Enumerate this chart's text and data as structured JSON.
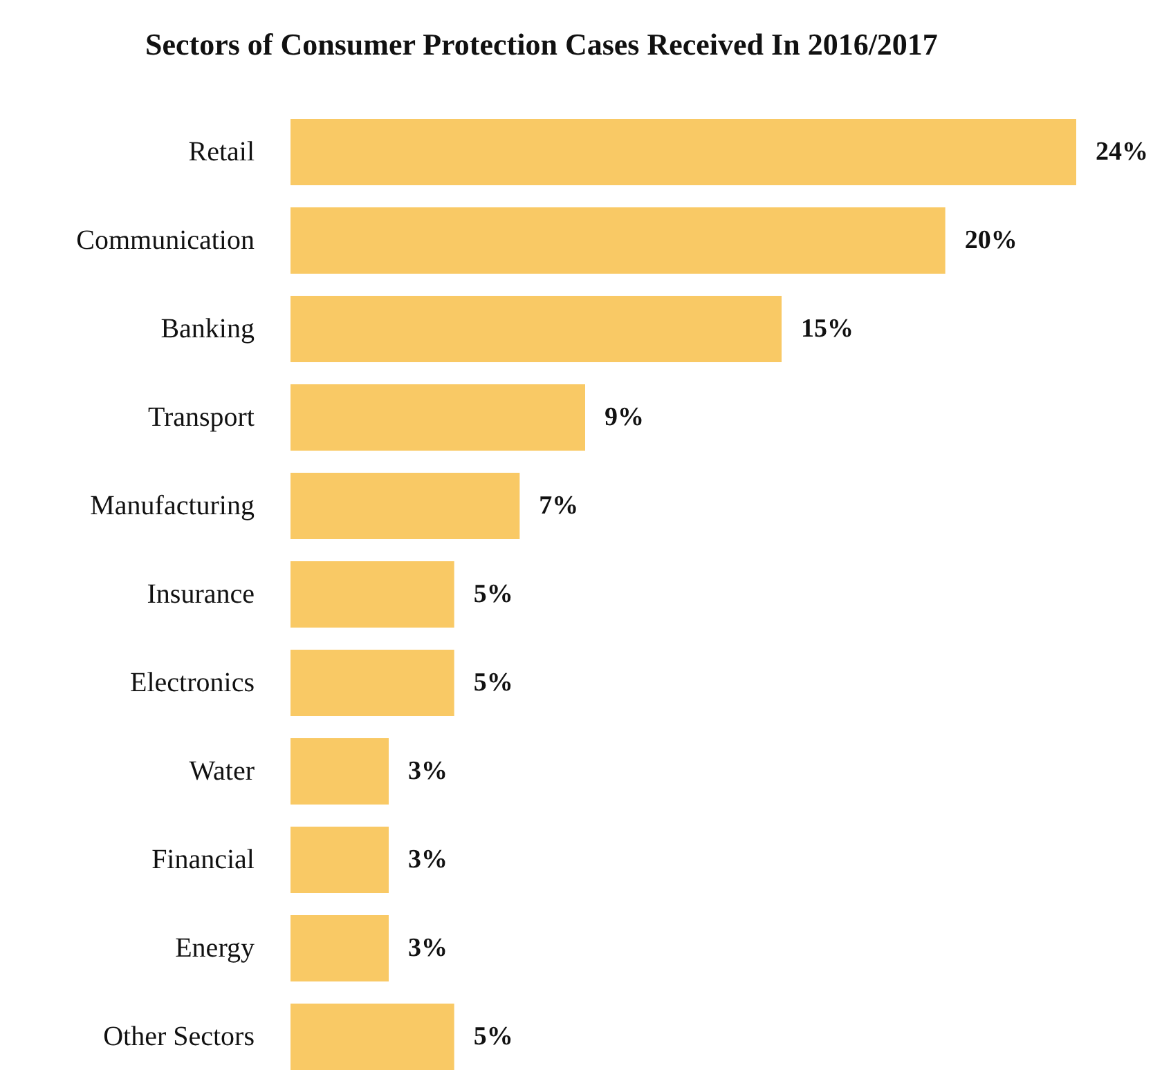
{
  "chart_data": {
    "type": "bar",
    "orientation": "horizontal",
    "title": "Sectors of Consumer Protection Cases Received In 2016/2017",
    "categories": [
      "Retail",
      "Communication",
      "Banking",
      "Transport",
      "Manufacturing",
      "Insurance",
      "Electronics",
      "Water",
      "Financial",
      "Energy",
      "Other Sectors"
    ],
    "values": [
      24,
      20,
      15,
      9,
      7,
      5,
      5,
      3,
      3,
      3,
      5
    ],
    "value_labels": [
      "24%",
      "20%",
      "15%",
      "9%",
      "7%",
      "5%",
      "5%",
      "3%",
      "3%",
      "3%",
      "5%"
    ],
    "color": "#f9c965"
  }
}
